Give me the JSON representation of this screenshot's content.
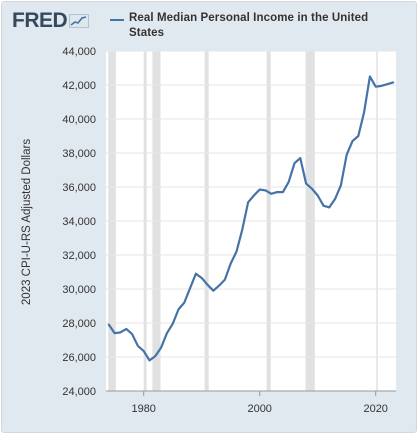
{
  "logo": {
    "text": "FRED"
  },
  "legend": {
    "series_label": "Real Median Personal Income in the United States"
  },
  "colors": {
    "frame_bg": "#e1e9f0",
    "plot_bg": "#ffffff",
    "line": "#4572a7",
    "recession": "#e1e1e1",
    "logo": "#35495e"
  },
  "chart_data": {
    "type": "line",
    "title": "",
    "xlabel": "",
    "ylabel": "2023 CPI-U-RS Adjusted Dollars",
    "xlim": [
      1973.5,
      2023.5
    ],
    "ylim": [
      24000,
      44000
    ],
    "yticks": [
      24000,
      26000,
      28000,
      30000,
      32000,
      34000,
      36000,
      38000,
      40000,
      42000,
      44000
    ],
    "ytick_labels": [
      "24,000",
      "26,000",
      "28,000",
      "30,000",
      "32,000",
      "34,000",
      "36,000",
      "38,000",
      "40,000",
      "42,000",
      "44,000"
    ],
    "xticks": [
      1980,
      2000,
      2020
    ],
    "xtick_labels": [
      "1980",
      "2000",
      "2020"
    ],
    "grid": "horizontal",
    "legend_position": "top",
    "recessions": [
      [
        1973.9,
        1975.2
      ],
      [
        1980.0,
        1980.5
      ],
      [
        1981.5,
        1982.9
      ],
      [
        1990.5,
        1991.2
      ],
      [
        2001.2,
        2001.9
      ],
      [
        2007.9,
        2009.5
      ],
      [
        2020.1,
        2020.3
      ]
    ],
    "series": [
      {
        "name": "Real Median Personal Income in the United States",
        "x": [
          1974,
          1975,
          1976,
          1977,
          1978,
          1979,
          1980,
          1981,
          1982,
          1983,
          1984,
          1985,
          1986,
          1987,
          1988,
          1989,
          1990,
          1991,
          1992,
          1993,
          1994,
          1995,
          1996,
          1997,
          1998,
          1999,
          2000,
          2001,
          2002,
          2003,
          2004,
          2005,
          2006,
          2007,
          2008,
          2009,
          2010,
          2011,
          2012,
          2013,
          2014,
          2015,
          2016,
          2017,
          2018,
          2019,
          2020,
          2021,
          2022,
          2023
        ],
        "values": [
          27900,
          27400,
          27450,
          27650,
          27350,
          26650,
          26350,
          25800,
          26050,
          26550,
          27400,
          27950,
          28800,
          29200,
          30050,
          30900,
          30650,
          30250,
          29900,
          30200,
          30550,
          31500,
          32200,
          33500,
          35100,
          35500,
          35850,
          35800,
          35600,
          35700,
          35700,
          36300,
          37400,
          37700,
          36200,
          35900,
          35500,
          34900,
          34800,
          35300,
          36100,
          37900,
          38700,
          39000,
          40400,
          42500,
          41900,
          41950,
          42050,
          42150
        ]
      }
    ]
  }
}
